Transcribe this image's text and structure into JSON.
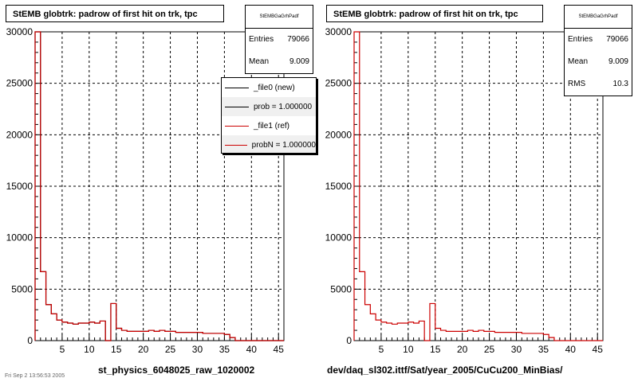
{
  "panels": [
    {
      "title": "StEMB globtrk: padrow of first hit on trk, tpc",
      "stats": {
        "name": "StEMBGaGrhPadf",
        "rows": [
          {
            "label": "Entries",
            "value": "79066"
          },
          {
            "label": "Mean",
            "value": "9.009"
          }
        ]
      },
      "legend": [
        {
          "label": "_file0 (new)",
          "color": "#000000"
        },
        {
          "label": "prob = 1.000000",
          "color": "#000000"
        },
        {
          "label": "_file1 (ref)",
          "color": "#cc0000"
        },
        {
          "label": "probN = 1.000000",
          "color": "#cc0000"
        }
      ],
      "xcaption": "st_physics_6048025_raw_1020002"
    },
    {
      "title": "StEMB globtrk: padrow of first hit on trk, tpc",
      "stats": {
        "name": "StEMBGaGrhPadf",
        "rows": [
          {
            "label": "Entries",
            "value": "79066"
          },
          {
            "label": "Mean",
            "value": "9.009"
          },
          {
            "label": "RMS",
            "value": "10.3"
          }
        ]
      },
      "xcaption": "dev/daq_sl302.ittf/Sat/year_2005/CuCu200_MinBias/"
    }
  ],
  "corner_text": "Fri Sep 2 13:56:53 2005",
  "chart_data": [
    {
      "type": "bar",
      "style": "step-histogram",
      "xlim": [
        0,
        46
      ],
      "ylim": [
        0,
        30000
      ],
      "xticks": [
        5,
        10,
        15,
        20,
        25,
        30,
        35,
        40,
        45
      ],
      "yticks": [
        0,
        5000,
        10000,
        15000,
        20000,
        25000,
        30000
      ],
      "grid": true,
      "bin_edges_start": 0,
      "bin_width": 1,
      "series": [
        {
          "name": "_file0 (new)",
          "color": "#000000",
          "values": [
            30000,
            6700,
            3500,
            2600,
            2000,
            1800,
            1700,
            1600,
            1700,
            1700,
            1800,
            1700,
            1900,
            0,
            3600,
            1200,
            1000,
            900,
            900,
            900,
            900,
            1000,
            900,
            1000,
            900,
            900,
            800,
            800,
            800,
            800,
            800,
            700,
            700,
            700,
            700,
            600,
            300,
            0,
            0,
            0,
            0,
            0,
            0,
            0,
            0,
            0
          ]
        },
        {
          "name": "_file1 (ref)",
          "color": "#cc0000",
          "values": [
            30000,
            6700,
            3500,
            2600,
            2000,
            1800,
            1700,
            1600,
            1700,
            1700,
            1800,
            1700,
            1900,
            0,
            3600,
            1200,
            1000,
            900,
            900,
            900,
            900,
            1000,
            900,
            1000,
            900,
            900,
            800,
            800,
            800,
            800,
            800,
            700,
            700,
            700,
            700,
            600,
            300,
            0,
            0,
            0,
            0,
            0,
            0,
            0,
            0,
            0
          ]
        }
      ]
    },
    {
      "type": "bar",
      "style": "step-histogram",
      "xlim": [
        0,
        46
      ],
      "ylim": [
        0,
        30000
      ],
      "xticks": [
        5,
        10,
        15,
        20,
        25,
        30,
        35,
        40,
        45
      ],
      "yticks": [
        0,
        5000,
        10000,
        15000,
        20000,
        25000,
        30000
      ],
      "grid": true,
      "bin_edges_start": 0,
      "bin_width": 1,
      "series": [
        {
          "color": "#cc0000",
          "values": [
            30000,
            6700,
            3500,
            2600,
            2000,
            1800,
            1700,
            1600,
            1700,
            1700,
            1800,
            1700,
            1900,
            0,
            3600,
            1200,
            1000,
            900,
            900,
            900,
            900,
            1000,
            900,
            1000,
            900,
            900,
            800,
            800,
            800,
            800,
            800,
            700,
            700,
            700,
            700,
            600,
            300,
            0,
            0,
            0,
            0,
            0,
            0,
            0,
            0,
            0
          ]
        }
      ]
    }
  ]
}
